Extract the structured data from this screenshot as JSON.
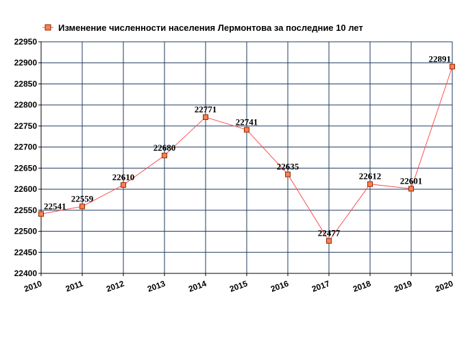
{
  "chart_data": {
    "type": "line",
    "title": "",
    "xlabel": "",
    "ylabel": "",
    "legend": {
      "position": "top-left",
      "entries": [
        "Изменение численности населения Лермонтова за последние 10 лет"
      ]
    },
    "x": [
      2010,
      2011,
      2012,
      2013,
      2014,
      2015,
      2016,
      2017,
      2018,
      2019,
      2020
    ],
    "x_tick_labels": [
      "2010",
      "2011",
      "2012",
      "2013",
      "2014",
      "2015",
      "2016",
      "2017",
      "2018",
      "2019",
      "2020"
    ],
    "y_tick_labels": [
      "22400",
      "22450",
      "22500",
      "22550",
      "22600",
      "22650",
      "22700",
      "22750",
      "22800",
      "22850",
      "22900",
      "22950"
    ],
    "ylim": [
      22400,
      22950
    ],
    "ystep": 50,
    "grid": true,
    "series": [
      {
        "name": "Изменение численности населения Лермонтова за последние 10 лет",
        "values": [
          22541,
          22559,
          22610,
          22680,
          22771,
          22741,
          22635,
          22477,
          22612,
          22601,
          22891
        ],
        "labels": [
          "22541",
          "22559",
          "22610",
          "22680",
          "22771",
          "22741",
          "22635",
          "22477",
          "22612",
          "22601",
          "22891"
        ]
      }
    ],
    "colors": {
      "line": "#ff4f4f",
      "marker_fill": "#ff7f50",
      "marker_stroke": "#8b2a00",
      "grid": "#1f3a5f",
      "axis": "#000000"
    }
  }
}
